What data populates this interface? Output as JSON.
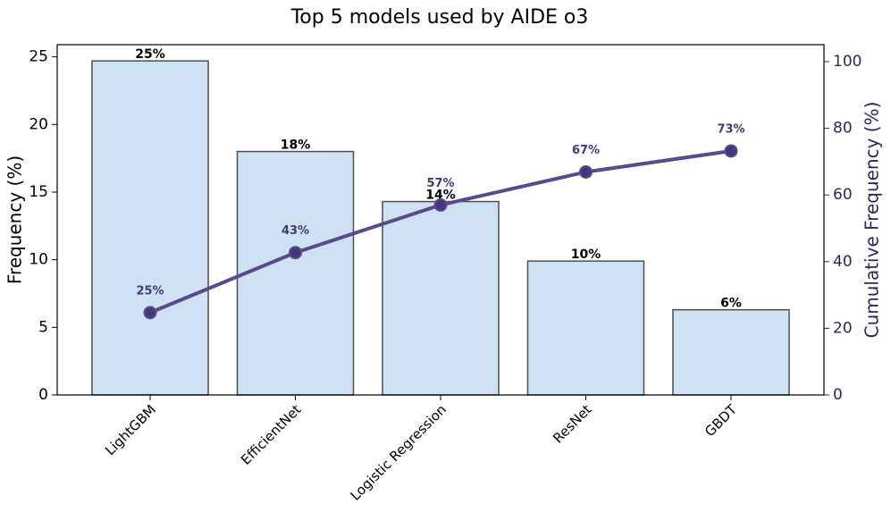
{
  "chart_data": {
    "type": "bar",
    "title": "Top 5 models used by AIDE o3",
    "y_label": "Frequency (%)",
    "y2_label": "Cumulative Frequency (%)",
    "categories": [
      "LightGBM",
      "EfficientNet",
      "Logistic Regression",
      "ResNet",
      "GBDT"
    ],
    "series": [
      {
        "type": "bar",
        "color": "#cfe2f3",
        "edgecolor": "#4d4d4d",
        "values": [
          24.7,
          18.0,
          14.3,
          9.9,
          6.3
        ],
        "value_labels": [
          "25%",
          "18%",
          "14%",
          "10%",
          "6%"
        ]
      },
      {
        "type": "line",
        "axis": "y2",
        "color": "#584a8c",
        "marker_color": "#45387a",
        "values": [
          24.7,
          42.7,
          57.0,
          66.9,
          73.2
        ],
        "value_labels": [
          "25%",
          "43%",
          "57%",
          "67%",
          "73%"
        ]
      }
    ],
    "ylim": [
      0,
      25.9
    ],
    "yticks": [
      0,
      5,
      10,
      15,
      20,
      25
    ],
    "y2lim": [
      0,
      105.1
    ],
    "y2ticks": [
      0,
      20,
      40,
      60,
      80,
      100
    ],
    "y2_color": "#2e2560",
    "grid": false
  }
}
